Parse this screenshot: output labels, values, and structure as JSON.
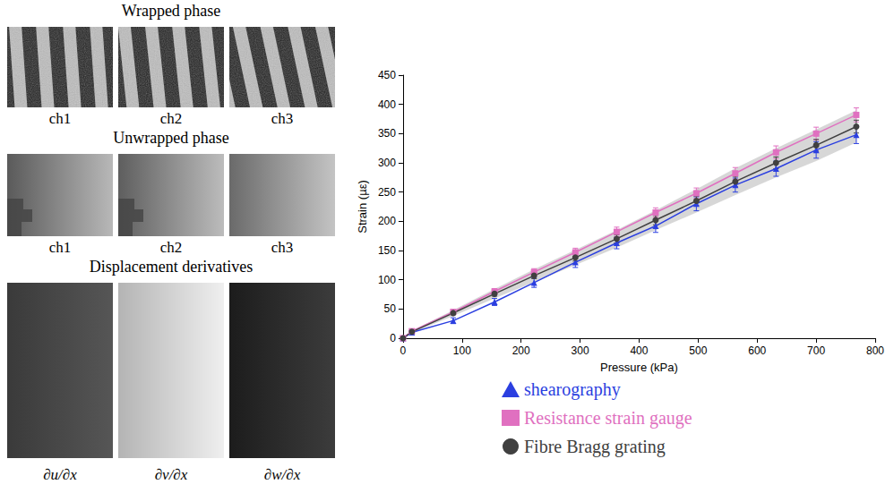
{
  "panels": [
    {
      "title": "Wrapped phase",
      "labels": [
        "ch1",
        "ch2",
        "ch3"
      ]
    },
    {
      "title": "Unwrapped phase",
      "labels": [
        "ch1",
        "ch2",
        "ch3"
      ]
    },
    {
      "title": "Displacement derivatives",
      "labels": [
        "∂u/∂x",
        "∂v/∂x",
        "∂w/∂x"
      ]
    }
  ],
  "chart_data": {
    "type": "line",
    "x_label": "Pressure (kPa)",
    "y_label": "Strain (µε)",
    "x": [
      0,
      15,
      85,
      155,
      222,
      292,
      362,
      428,
      497,
      563,
      632,
      700,
      768
    ],
    "xlim": [
      0,
      800
    ],
    "xticks": [
      0,
      100,
      200,
      300,
      400,
      500,
      600,
      700,
      800
    ],
    "ylim": [
      0,
      450
    ],
    "yticks": [
      0,
      50,
      100,
      150,
      200,
      250,
      300,
      350,
      400,
      450
    ],
    "grid": false,
    "legend": "bottom",
    "series": [
      {
        "name": "shearography",
        "color": "#2b3fe0",
        "marker": "triangle",
        "values": [
          0,
          10,
          30,
          62,
          95,
          130,
          163,
          192,
          230,
          262,
          290,
          322,
          348
        ],
        "errors": [
          0,
          3,
          5,
          6,
          8,
          9,
          10,
          11,
          12,
          12,
          13,
          14,
          15
        ]
      },
      {
        "name": "Resistance strain gauge",
        "color": "#e070c0",
        "marker": "square",
        "values": [
          0,
          12,
          45,
          80,
          113,
          147,
          182,
          215,
          248,
          282,
          318,
          350,
          382
        ],
        "errors": [
          0,
          2,
          4,
          5,
          6,
          7,
          8,
          8,
          9,
          10,
          11,
          11,
          12
        ]
      },
      {
        "name": "Fibre Bragg grating",
        "color": "#404040",
        "marker": "circle",
        "values": [
          0,
          11,
          43,
          76,
          107,
          138,
          170,
          202,
          235,
          268,
          300,
          330,
          362
        ],
        "errors": [
          0,
          2,
          3,
          4,
          5,
          6,
          7,
          8,
          8,
          9,
          10,
          10,
          11
        ],
        "band": {
          "lower": [
            0,
            9,
            38,
            68,
            96,
            125,
            155,
            185,
            215,
            245,
            275,
            303,
            335
          ],
          "upper": [
            0,
            13,
            48,
            84,
            118,
            151,
            185,
            219,
            255,
            291,
            325,
            357,
            390
          ]
        }
      }
    ]
  }
}
